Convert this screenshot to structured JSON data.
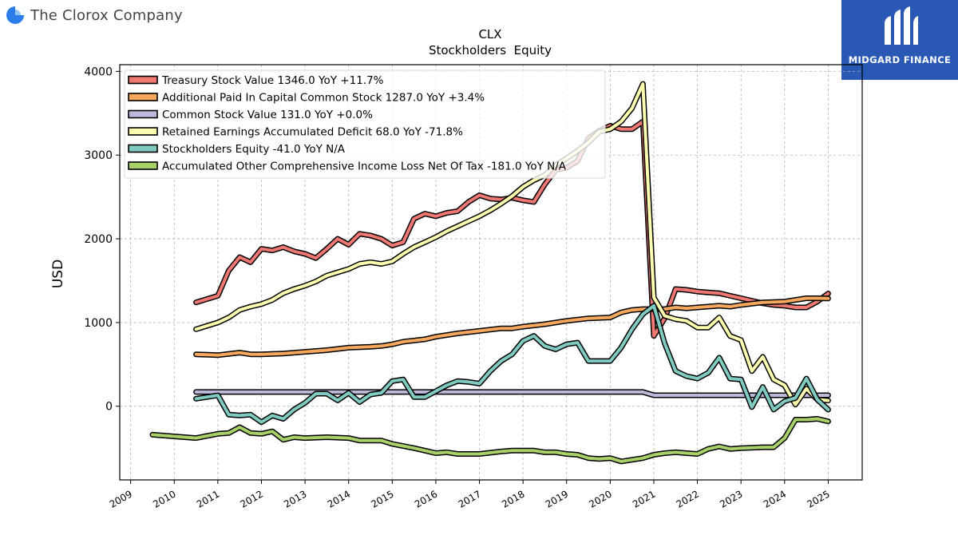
{
  "brand": {
    "company_name": "The Clorox Company",
    "icon": "clorox-logo-icon"
  },
  "watermark": {
    "text": "MIDGARD FINANCE",
    "icon": "midgard-logo-icon",
    "background": "#2a59b5"
  },
  "chart_data": {
    "type": "line",
    "title": "CLX",
    "subtitle": "Stockholders  Equity",
    "xlabel": "",
    "ylabel": "USD",
    "xlim": [
      2008.75,
      2025.78
    ],
    "ylim": [
      -880,
      4080
    ],
    "yticks": [
      0,
      1000,
      2000,
      3000,
      4000
    ],
    "xticks": [
      "2009",
      "2010",
      "2011",
      "2012",
      "2013",
      "2014",
      "2015",
      "2016",
      "2017",
      "2018",
      "2019",
      "2020",
      "2021",
      "2022",
      "2023",
      "2024",
      "2025"
    ],
    "grid": true,
    "legend_position": "top-left",
    "series": [
      {
        "name": "Treasury Stock Value  1346.0 YoY +11.7%",
        "color": "#f07872",
        "points": [
          [
            2010.5,
            1240
          ],
          [
            2011.0,
            1320
          ],
          [
            2011.25,
            1620
          ],
          [
            2011.5,
            1780
          ],
          [
            2011.75,
            1720
          ],
          [
            2012.0,
            1880
          ],
          [
            2012.25,
            1860
          ],
          [
            2012.5,
            1900
          ],
          [
            2012.75,
            1850
          ],
          [
            2013.0,
            1820
          ],
          [
            2013.25,
            1770
          ],
          [
            2013.5,
            1880
          ],
          [
            2013.75,
            2000
          ],
          [
            2014.0,
            1930
          ],
          [
            2014.25,
            2060
          ],
          [
            2014.5,
            2040
          ],
          [
            2014.75,
            2000
          ],
          [
            2015.0,
            1920
          ],
          [
            2015.25,
            1960
          ],
          [
            2015.5,
            2240
          ],
          [
            2015.75,
            2300
          ],
          [
            2016.0,
            2270
          ],
          [
            2016.25,
            2310
          ],
          [
            2016.5,
            2330
          ],
          [
            2016.75,
            2440
          ],
          [
            2017.0,
            2520
          ],
          [
            2017.25,
            2480
          ],
          [
            2017.5,
            2470
          ],
          [
            2017.75,
            2490
          ],
          [
            2018.0,
            2460
          ],
          [
            2018.25,
            2440
          ],
          [
            2018.5,
            2650
          ],
          [
            2018.75,
            2820
          ],
          [
            2019.0,
            2850
          ],
          [
            2019.25,
            2930
          ],
          [
            2019.5,
            3200
          ],
          [
            2019.75,
            3290
          ],
          [
            2020.0,
            3350
          ],
          [
            2020.25,
            3310
          ],
          [
            2020.5,
            3310
          ],
          [
            2020.75,
            3400
          ],
          [
            2021.0,
            840
          ],
          [
            2021.25,
            1050
          ],
          [
            2021.5,
            1400
          ],
          [
            2021.75,
            1390
          ],
          [
            2022.0,
            1370
          ],
          [
            2022.25,
            1360
          ],
          [
            2022.5,
            1350
          ],
          [
            2022.75,
            1320
          ],
          [
            2023.0,
            1290
          ],
          [
            2023.25,
            1260
          ],
          [
            2023.5,
            1230
          ],
          [
            2023.75,
            1210
          ],
          [
            2024.0,
            1200
          ],
          [
            2024.25,
            1180
          ],
          [
            2024.5,
            1180
          ],
          [
            2024.75,
            1250
          ],
          [
            2025.0,
            1346
          ]
        ]
      },
      {
        "name": "Additional Paid In Capital Common Stock  1287.0 YoY +3.4%",
        "color": "#f5a85e",
        "points": [
          [
            2010.5,
            620
          ],
          [
            2011.0,
            610
          ],
          [
            2011.5,
            640
          ],
          [
            2011.75,
            620
          ],
          [
            2012.0,
            620
          ],
          [
            2012.5,
            630
          ],
          [
            2013.0,
            650
          ],
          [
            2013.5,
            670
          ],
          [
            2014.0,
            700
          ],
          [
            2014.5,
            710
          ],
          [
            2014.75,
            720
          ],
          [
            2015.0,
            740
          ],
          [
            2015.25,
            770
          ],
          [
            2015.75,
            800
          ],
          [
            2016.0,
            830
          ],
          [
            2016.5,
            870
          ],
          [
            2017.0,
            900
          ],
          [
            2017.5,
            930
          ],
          [
            2017.75,
            930
          ],
          [
            2018.0,
            950
          ],
          [
            2018.5,
            980
          ],
          [
            2019.0,
            1020
          ],
          [
            2019.5,
            1050
          ],
          [
            2020.0,
            1060
          ],
          [
            2020.25,
            1120
          ],
          [
            2020.5,
            1150
          ],
          [
            2020.75,
            1160
          ],
          [
            2021.0,
            1160
          ],
          [
            2021.25,
            1160
          ],
          [
            2021.5,
            1180
          ],
          [
            2021.75,
            1170
          ],
          [
            2022.0,
            1180
          ],
          [
            2022.5,
            1200
          ],
          [
            2022.75,
            1190
          ],
          [
            2023.0,
            1210
          ],
          [
            2023.5,
            1240
          ],
          [
            2024.0,
            1250
          ],
          [
            2024.5,
            1290
          ],
          [
            2024.75,
            1290
          ],
          [
            2025.0,
            1287
          ]
        ]
      },
      {
        "name": "Common Stock Value  131.0 YoY +0.0%",
        "color": "#bdb9da",
        "points": [
          [
            2010.5,
            170
          ],
          [
            2011.0,
            170
          ],
          [
            2012.0,
            170
          ],
          [
            2013.0,
            170
          ],
          [
            2014.0,
            170
          ],
          [
            2015.0,
            170
          ],
          [
            2016.0,
            170
          ],
          [
            2017.0,
            170
          ],
          [
            2018.0,
            170
          ],
          [
            2019.0,
            170
          ],
          [
            2020.0,
            170
          ],
          [
            2020.75,
            170
          ],
          [
            2021.0,
            131
          ],
          [
            2022.0,
            131
          ],
          [
            2023.0,
            131
          ],
          [
            2024.0,
            131
          ],
          [
            2025.0,
            131
          ]
        ]
      },
      {
        "name": "Retained Earnings Accumulated Deficit  68.0 YoY -71.8%",
        "color": "#fdfdb0",
        "points": [
          [
            2010.5,
            920
          ],
          [
            2011.0,
            1000
          ],
          [
            2011.25,
            1060
          ],
          [
            2011.5,
            1150
          ],
          [
            2011.75,
            1190
          ],
          [
            2012.0,
            1220
          ],
          [
            2012.25,
            1270
          ],
          [
            2012.5,
            1350
          ],
          [
            2012.75,
            1400
          ],
          [
            2013.0,
            1440
          ],
          [
            2013.25,
            1490
          ],
          [
            2013.5,
            1560
          ],
          [
            2013.75,
            1600
          ],
          [
            2014.0,
            1640
          ],
          [
            2014.25,
            1700
          ],
          [
            2014.5,
            1720
          ],
          [
            2014.75,
            1700
          ],
          [
            2015.0,
            1730
          ],
          [
            2015.25,
            1820
          ],
          [
            2015.5,
            1900
          ],
          [
            2015.75,
            1960
          ],
          [
            2016.0,
            2020
          ],
          [
            2016.25,
            2090
          ],
          [
            2016.5,
            2150
          ],
          [
            2016.75,
            2210
          ],
          [
            2017.0,
            2270
          ],
          [
            2017.25,
            2340
          ],
          [
            2017.5,
            2420
          ],
          [
            2017.75,
            2510
          ],
          [
            2018.0,
            2620
          ],
          [
            2018.25,
            2700
          ],
          [
            2018.5,
            2760
          ],
          [
            2018.75,
            2880
          ],
          [
            2019.0,
            2960
          ],
          [
            2019.25,
            3050
          ],
          [
            2019.5,
            3150
          ],
          [
            2019.75,
            3280
          ],
          [
            2020.0,
            3310
          ],
          [
            2020.25,
            3400
          ],
          [
            2020.5,
            3560
          ],
          [
            2020.75,
            3850
          ],
          [
            2021.0,
            1300
          ],
          [
            2021.25,
            1080
          ],
          [
            2021.5,
            1040
          ],
          [
            2021.75,
            1020
          ],
          [
            2022.0,
            940
          ],
          [
            2022.25,
            940
          ],
          [
            2022.5,
            1060
          ],
          [
            2022.75,
            840
          ],
          [
            2023.0,
            790
          ],
          [
            2023.25,
            420
          ],
          [
            2023.5,
            590
          ],
          [
            2023.75,
            320
          ],
          [
            2024.0,
            250
          ],
          [
            2024.25,
            20
          ],
          [
            2024.5,
            210
          ],
          [
            2024.75,
            80
          ],
          [
            2025.0,
            68
          ]
        ]
      },
      {
        "name": "Stockholders Equity  -41.0 YoY N/A",
        "color": "#80cbc1",
        "points": [
          [
            2010.5,
            90
          ],
          [
            2011.0,
            130
          ],
          [
            2011.25,
            -100
          ],
          [
            2011.5,
            -110
          ],
          [
            2011.75,
            -100
          ],
          [
            2012.0,
            -190
          ],
          [
            2012.25,
            -110
          ],
          [
            2012.5,
            -150
          ],
          [
            2012.75,
            -40
          ],
          [
            2013.0,
            40
          ],
          [
            2013.25,
            150
          ],
          [
            2013.5,
            150
          ],
          [
            2013.75,
            70
          ],
          [
            2014.0,
            160
          ],
          [
            2014.25,
            50
          ],
          [
            2014.5,
            140
          ],
          [
            2014.75,
            160
          ],
          [
            2015.0,
            300
          ],
          [
            2015.25,
            320
          ],
          [
            2015.5,
            110
          ],
          [
            2015.75,
            110
          ],
          [
            2016.0,
            180
          ],
          [
            2016.25,
            250
          ],
          [
            2016.5,
            300
          ],
          [
            2016.75,
            290
          ],
          [
            2017.0,
            270
          ],
          [
            2017.25,
            420
          ],
          [
            2017.5,
            540
          ],
          [
            2017.75,
            620
          ],
          [
            2018.0,
            780
          ],
          [
            2018.25,
            840
          ],
          [
            2018.5,
            720
          ],
          [
            2018.75,
            680
          ],
          [
            2019.0,
            740
          ],
          [
            2019.25,
            760
          ],
          [
            2019.5,
            540
          ],
          [
            2019.75,
            540
          ],
          [
            2020.0,
            540
          ],
          [
            2020.25,
            700
          ],
          [
            2020.5,
            920
          ],
          [
            2020.75,
            1100
          ],
          [
            2021.0,
            1200
          ],
          [
            2021.25,
            750
          ],
          [
            2021.5,
            420
          ],
          [
            2021.75,
            360
          ],
          [
            2022.0,
            330
          ],
          [
            2022.25,
            400
          ],
          [
            2022.5,
            580
          ],
          [
            2022.75,
            330
          ],
          [
            2023.0,
            320
          ],
          [
            2023.25,
            -10
          ],
          [
            2023.5,
            230
          ],
          [
            2023.75,
            -40
          ],
          [
            2024.0,
            60
          ],
          [
            2024.25,
            100
          ],
          [
            2024.5,
            330
          ],
          [
            2024.75,
            80
          ],
          [
            2025.0,
            -41
          ]
        ]
      },
      {
        "name": "Accumulated Other Comprehensive Income Loss Net Of Tax  -181.0 YoY N/A",
        "color": "#a9d16a",
        "points": [
          [
            2009.5,
            -340
          ],
          [
            2010.0,
            -360
          ],
          [
            2010.5,
            -380
          ],
          [
            2011.0,
            -330
          ],
          [
            2011.25,
            -320
          ],
          [
            2011.5,
            -250
          ],
          [
            2011.75,
            -320
          ],
          [
            2012.0,
            -330
          ],
          [
            2012.25,
            -300
          ],
          [
            2012.5,
            -400
          ],
          [
            2012.75,
            -370
          ],
          [
            2013.0,
            -380
          ],
          [
            2013.5,
            -370
          ],
          [
            2014.0,
            -380
          ],
          [
            2014.25,
            -410
          ],
          [
            2014.75,
            -410
          ],
          [
            2015.0,
            -450
          ],
          [
            2015.5,
            -500
          ],
          [
            2015.75,
            -530
          ],
          [
            2016.0,
            -560
          ],
          [
            2016.25,
            -550
          ],
          [
            2016.5,
            -570
          ],
          [
            2017.0,
            -570
          ],
          [
            2017.5,
            -540
          ],
          [
            2017.75,
            -530
          ],
          [
            2018.0,
            -530
          ],
          [
            2018.25,
            -530
          ],
          [
            2018.5,
            -550
          ],
          [
            2018.75,
            -550
          ],
          [
            2019.0,
            -570
          ],
          [
            2019.25,
            -580
          ],
          [
            2019.5,
            -620
          ],
          [
            2019.75,
            -630
          ],
          [
            2020.0,
            -620
          ],
          [
            2020.25,
            -660
          ],
          [
            2020.75,
            -620
          ],
          [
            2021.0,
            -580
          ],
          [
            2021.25,
            -560
          ],
          [
            2021.5,
            -550
          ],
          [
            2021.75,
            -560
          ],
          [
            2022.0,
            -570
          ],
          [
            2022.25,
            -510
          ],
          [
            2022.5,
            -480
          ],
          [
            2022.75,
            -510
          ],
          [
            2023.0,
            -500
          ],
          [
            2023.5,
            -490
          ],
          [
            2023.75,
            -490
          ],
          [
            2024.0,
            -380
          ],
          [
            2024.25,
            -160
          ],
          [
            2024.5,
            -160
          ],
          [
            2024.75,
            -150
          ],
          [
            2025.0,
            -181
          ]
        ]
      }
    ]
  }
}
